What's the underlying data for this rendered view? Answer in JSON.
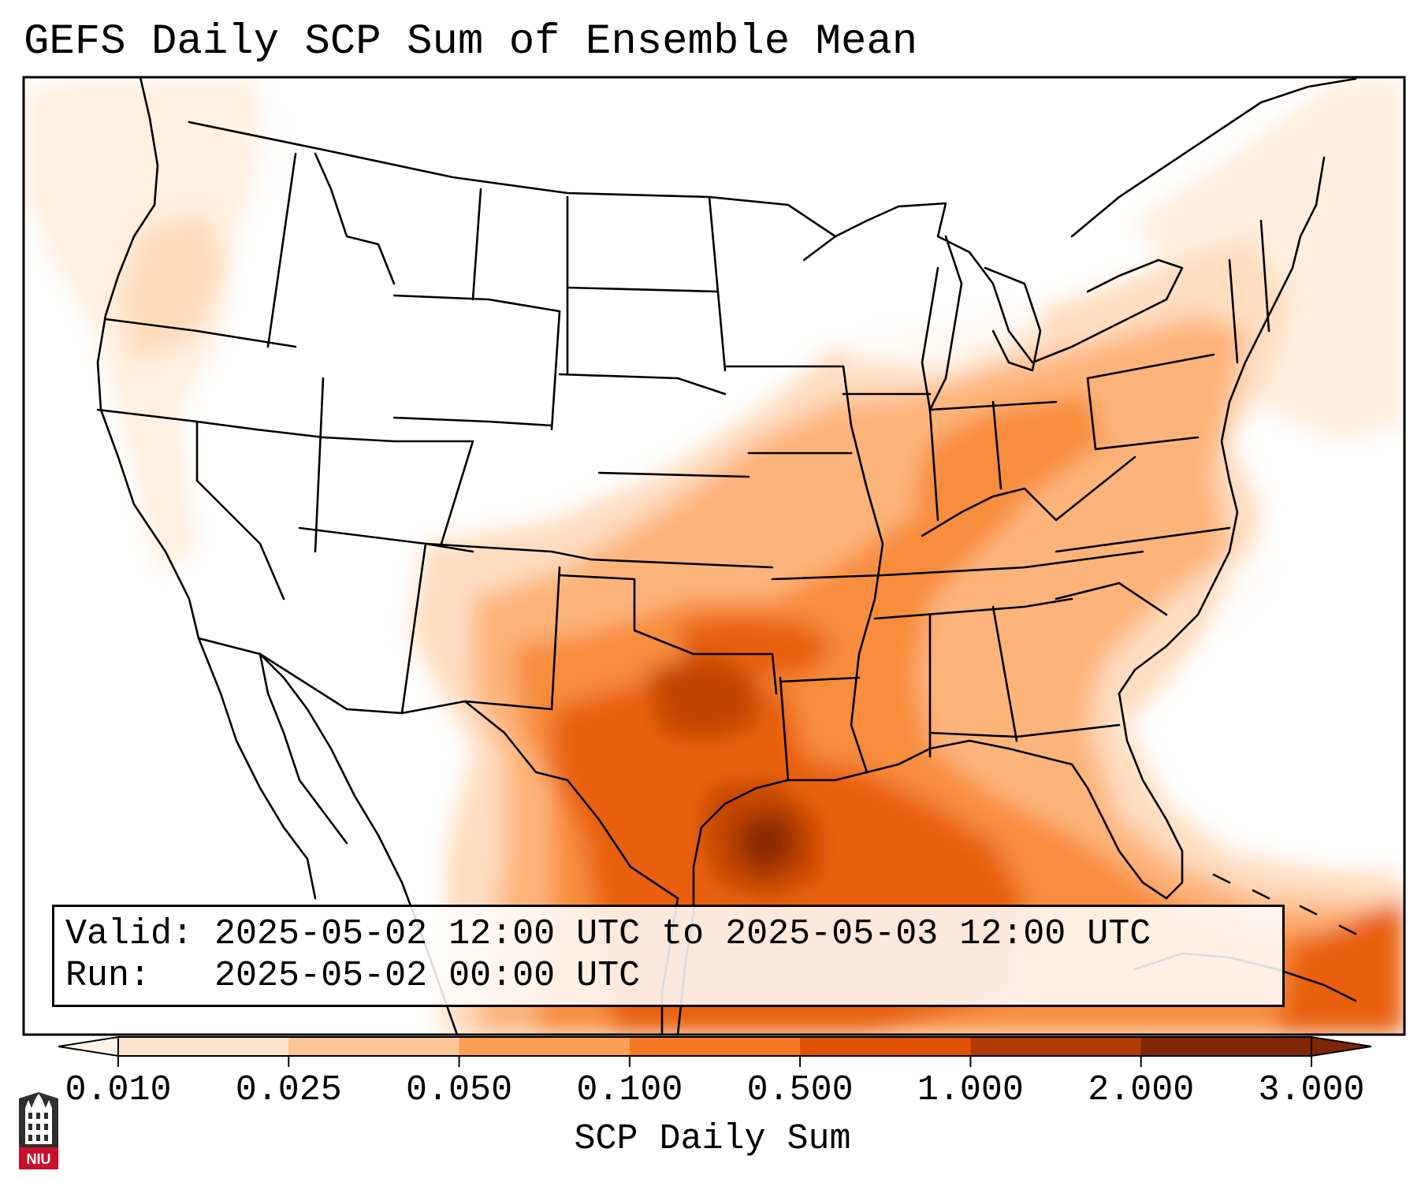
{
  "title": "GEFS Daily SCP Sum of Ensemble Mean",
  "info": {
    "valid_label": "Valid:",
    "valid_value": "2025-05-02 12:00 UTC to 2025-05-03 12:00 UTC",
    "run_label": "Run:",
    "run_value": "2025-05-02 00:00 UTC"
  },
  "colorbar": {
    "label": "SCP Daily Sum",
    "ticks": [
      "0.010",
      "0.025",
      "0.050",
      "0.100",
      "0.500",
      "1.000",
      "2.000",
      "3.000"
    ],
    "colors": [
      "#fff5eb",
      "#fee3c8",
      "#fdc593",
      "#fd9e54",
      "#f57923",
      "#e05206",
      "#b13a03",
      "#7f2704"
    ],
    "extend": "both"
  },
  "logo": {
    "text": "NIU",
    "colors": {
      "red": "#c8102e",
      "dark": "#333333"
    }
  }
}
